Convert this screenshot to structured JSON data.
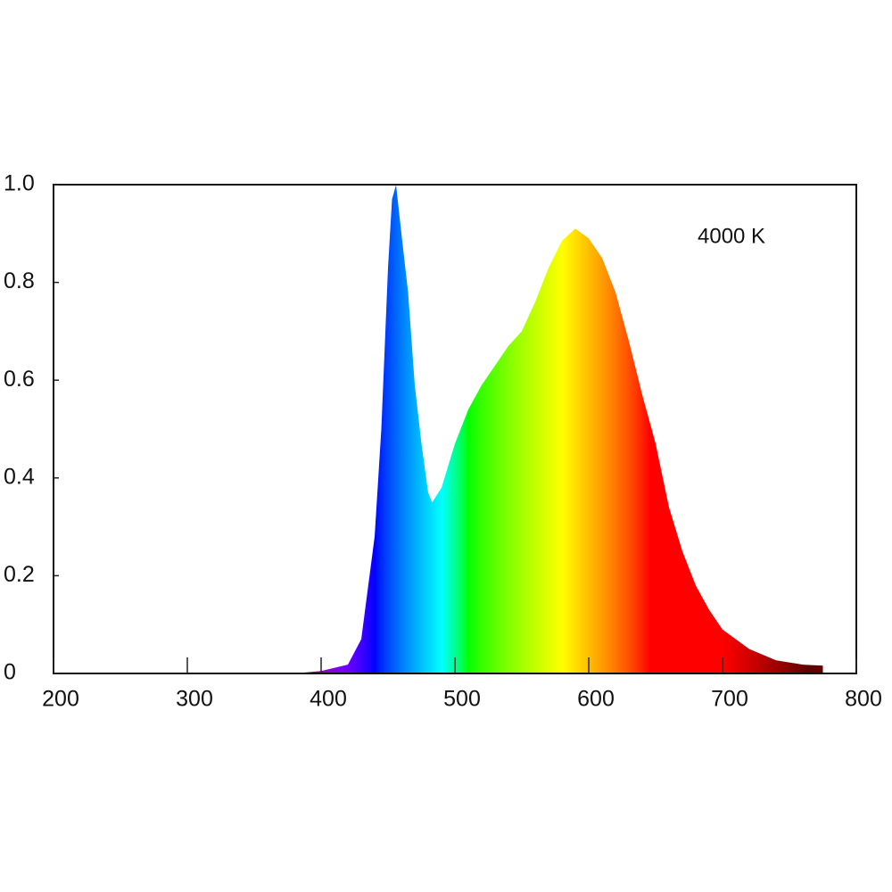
{
  "chart_data": {
    "type": "area",
    "annotation": "4000 K",
    "x": [
      380,
      400,
      420,
      430,
      440,
      445,
      450,
      453,
      456,
      460,
      465,
      470,
      475,
      480,
      483,
      490,
      500,
      510,
      520,
      530,
      540,
      550,
      560,
      570,
      580,
      590,
      600,
      610,
      620,
      630,
      640,
      650,
      660,
      670,
      680,
      690,
      700,
      720,
      740,
      760,
      775
    ],
    "values": [
      0.0,
      0.005,
      0.018,
      0.07,
      0.28,
      0.5,
      0.83,
      0.97,
      1.0,
      0.9,
      0.78,
      0.59,
      0.47,
      0.37,
      0.35,
      0.38,
      0.47,
      0.54,
      0.59,
      0.63,
      0.67,
      0.7,
      0.76,
      0.83,
      0.885,
      0.91,
      0.89,
      0.85,
      0.78,
      0.68,
      0.57,
      0.47,
      0.34,
      0.25,
      0.18,
      0.13,
      0.09,
      0.05,
      0.027,
      0.018,
      0.016
    ],
    "color": "spectrum",
    "xlim": [
      200,
      800
    ],
    "xticks": [
      200,
      300,
      400,
      500,
      600,
      700,
      800
    ],
    "ylim": [
      0,
      1
    ],
    "yticks": [
      0,
      0.2,
      0.4,
      0.6,
      0.8,
      {
        "value": 1,
        "label": "1.0"
      }
    ],
    "grid": false
  }
}
